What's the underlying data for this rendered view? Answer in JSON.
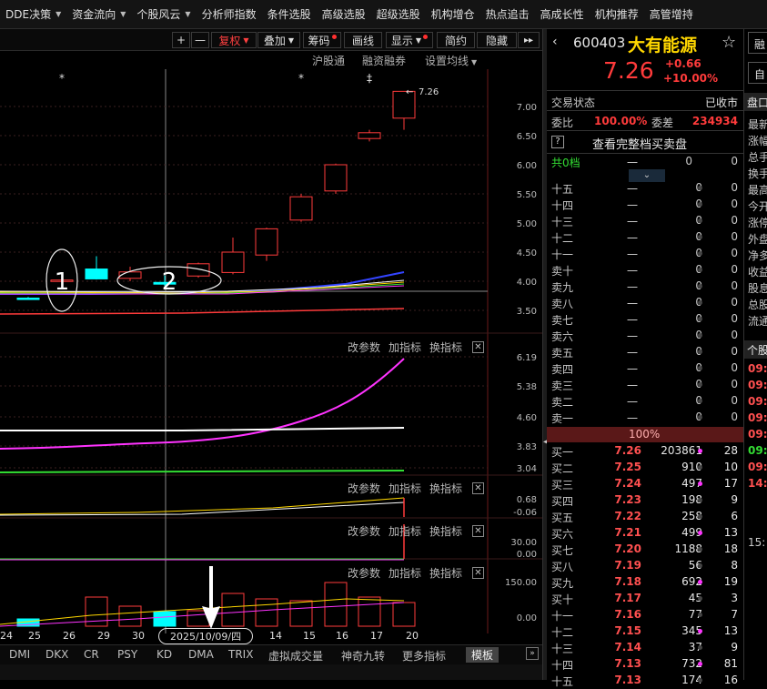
{
  "menu": [
    {
      "label": "DDE决策",
      "arrow": true
    },
    {
      "label": "资金流向",
      "arrow": true
    },
    {
      "label": "个股风云",
      "arrow": true
    },
    {
      "label": "分析师指数",
      "arrow": false
    },
    {
      "label": "条件选股",
      "arrow": false
    },
    {
      "label": "高级选股",
      "arrow": false
    },
    {
      "label": "超级选股",
      "arrow": false
    },
    {
      "label": "机构增仓",
      "arrow": false
    },
    {
      "label": "热点追击",
      "arrow": false
    },
    {
      "label": "高成长性",
      "arrow": false
    },
    {
      "label": "机构推荐",
      "arrow": false
    },
    {
      "label": "高管增持",
      "arrow": false
    }
  ],
  "toolbar": {
    "plus": "+",
    "minus": "—",
    "fuquan": "复权",
    "overlay": "叠加",
    "chips": "筹码",
    "draw": "画线",
    "display": "显示",
    "simple": "简约",
    "hide": "隐藏",
    "expand": "▸▸"
  },
  "toplinks": {
    "hgt": "沪股通",
    "rzrq": "融资融券",
    "ma": "设置均线"
  },
  "main_panel": {
    "y_ticks": [
      "7.00",
      "6.50",
      "6.00",
      "5.50",
      "5.00",
      "4.50",
      "4.00",
      "3.50"
    ],
    "last_price_label": "7.26",
    "markers": [
      "*",
      "*",
      "‡"
    ],
    "annotation_1": "1",
    "annotation_2": "2"
  },
  "panel_buttons": {
    "params": "改参数",
    "add": "加指标",
    "switch": "换指标",
    "close": "✕"
  },
  "panel2": {
    "ticks": [
      "6.19",
      "5.38",
      "4.60",
      "3.83",
      "3.04"
    ]
  },
  "panel3": {
    "ticks": [
      "0.68",
      "-0.06"
    ]
  },
  "panel4": {
    "ticks": [
      "30.00",
      "0.00"
    ]
  },
  "panel5": {
    "ticks": [
      "150.00",
      "0.00"
    ]
  },
  "dates": [
    "24",
    "25",
    "26",
    "29",
    "30",
    "2025/10/09/四",
    "14",
    "15",
    "16",
    "17",
    "20"
  ],
  "indicators": [
    "DMI",
    "DKX",
    "CR",
    "PSY",
    "KD",
    "DMA",
    "TRIX",
    "虚拟成交量",
    "神奇九转",
    "更多指标",
    "模板"
  ],
  "stock": {
    "code": "600403",
    "name": "大有能源",
    "star": "☆",
    "price": "7.26",
    "change": "+0.66",
    "pct": "+10.00%",
    "status_label": "交易状态",
    "status": "已收市",
    "ratio_label": "委比",
    "ratio": "100.00%",
    "diff_label": "委差",
    "diff": "234934",
    "full_book": "查看完整档买卖盘",
    "help": "?",
    "levels_label": "共0档",
    "pct_bar": "100%"
  },
  "asks": [
    {
      "label": "十五",
      "price": "一",
      "vol": "0",
      "cnt": "0"
    },
    {
      "label": "十四",
      "price": "一",
      "vol": "0",
      "cnt": "0"
    },
    {
      "label": "十三",
      "price": "一",
      "vol": "0",
      "cnt": "0"
    },
    {
      "label": "十二",
      "price": "一",
      "vol": "0",
      "cnt": "0"
    },
    {
      "label": "十一",
      "price": "一",
      "vol": "0",
      "cnt": "0"
    },
    {
      "label": "卖十",
      "price": "一",
      "vol": "0",
      "cnt": "0"
    },
    {
      "label": "卖九",
      "price": "一",
      "vol": "0",
      "cnt": "0"
    },
    {
      "label": "卖八",
      "price": "一",
      "vol": "0",
      "cnt": "0"
    },
    {
      "label": "卖七",
      "price": "一",
      "vol": "0",
      "cnt": "0"
    },
    {
      "label": "卖六",
      "price": "一",
      "vol": "0",
      "cnt": "0"
    },
    {
      "label": "卖五",
      "price": "一",
      "vol": "0",
      "cnt": "0"
    },
    {
      "label": "卖四",
      "price": "一",
      "vol": "0",
      "cnt": "0"
    },
    {
      "label": "卖三",
      "price": "一",
      "vol": "0",
      "cnt": "0"
    },
    {
      "label": "卖二",
      "price": "一",
      "vol": "0",
      "cnt": "0"
    },
    {
      "label": "卖一",
      "price": "一",
      "vol": "0",
      "cnt": "0"
    }
  ],
  "bids": [
    {
      "label": "买一",
      "price": "7.26",
      "vol": "203861",
      "cnt": "28"
    },
    {
      "label": "买二",
      "price": "7.25",
      "vol": "910",
      "cnt": "10"
    },
    {
      "label": "买三",
      "price": "7.24",
      "vol": "497",
      "cnt": "17"
    },
    {
      "label": "买四",
      "price": "7.23",
      "vol": "198",
      "cnt": "9"
    },
    {
      "label": "买五",
      "price": "7.22",
      "vol": "258",
      "cnt": "6"
    },
    {
      "label": "买六",
      "price": "7.21",
      "vol": "499",
      "cnt": "13"
    },
    {
      "label": "买七",
      "price": "7.20",
      "vol": "1188",
      "cnt": "18"
    },
    {
      "label": "买八",
      "price": "7.19",
      "vol": "56",
      "cnt": "8"
    },
    {
      "label": "买九",
      "price": "7.18",
      "vol": "692",
      "cnt": "19"
    },
    {
      "label": "买十",
      "price": "7.17",
      "vol": "45",
      "cnt": "3"
    },
    {
      "label": "十一",
      "price": "7.16",
      "vol": "77",
      "cnt": "7"
    },
    {
      "label": "十二",
      "price": "7.15",
      "vol": "345",
      "cnt": "13"
    },
    {
      "label": "十三",
      "price": "7.14",
      "vol": "37",
      "cnt": "9"
    },
    {
      "label": "十四",
      "price": "7.13",
      "vol": "732",
      "cnt": "81"
    },
    {
      "label": "十五",
      "price": "7.13",
      "vol": "174",
      "cnt": "16"
    }
  ],
  "far_right": {
    "btn1": "融",
    "btn2": "自",
    "pankou": "盘口",
    "items": [
      "最新",
      "涨幅",
      "总手",
      "换手",
      "最高",
      "今开",
      "涨停",
      "外盘",
      "净多",
      "收益",
      "股息",
      "总股",
      "流通"
    ],
    "ticks_title": "个股",
    "ticks": [
      "09:",
      "09:",
      "09:",
      "09:",
      "09:",
      "09:",
      "09:",
      "14:"
    ],
    "bottom": "15:"
  },
  "colors": {
    "up": "#ff3b3b",
    "down": "#00ffff",
    "yellow": "#ffd700",
    "magenta": "#ff33ff",
    "white": "#ffffff"
  }
}
